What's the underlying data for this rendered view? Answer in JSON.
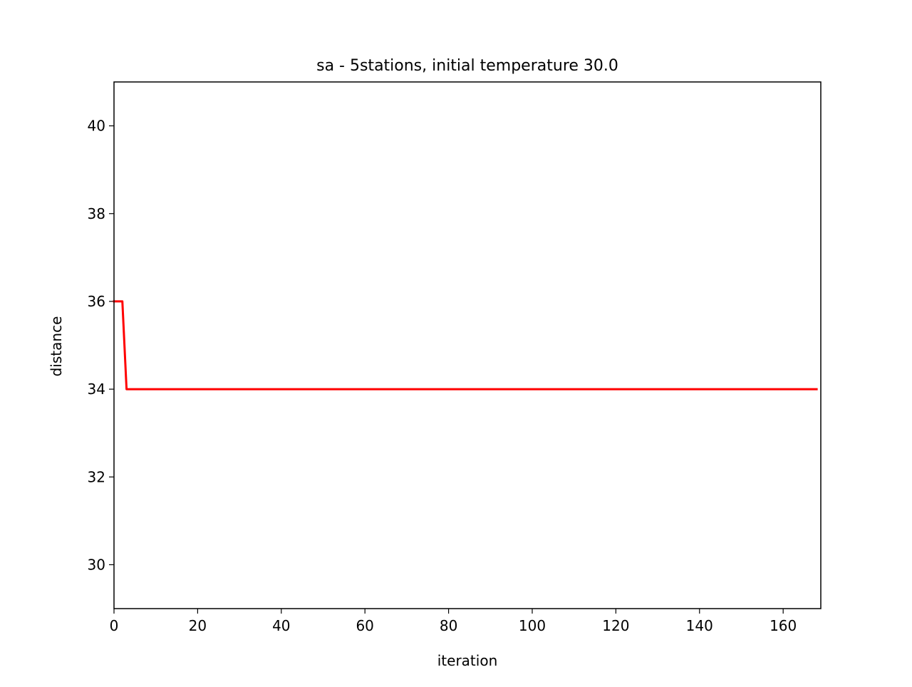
{
  "chart_data": {
    "type": "line",
    "title": "sa - 5stations, initial temperature 30.0",
    "xlabel": "iteration",
    "ylabel": "distance",
    "xlim": [
      0,
      169
    ],
    "ylim": [
      29,
      41
    ],
    "x_ticks": [
      0,
      20,
      40,
      60,
      80,
      100,
      120,
      140,
      160
    ],
    "y_ticks": [
      30,
      32,
      34,
      36,
      38,
      40
    ],
    "grid": false,
    "legend": "none",
    "series": [
      {
        "color": "#ff0000",
        "x": [
          0,
          2,
          3,
          168
        ],
        "y": [
          36,
          36,
          34,
          34
        ]
      }
    ]
  }
}
